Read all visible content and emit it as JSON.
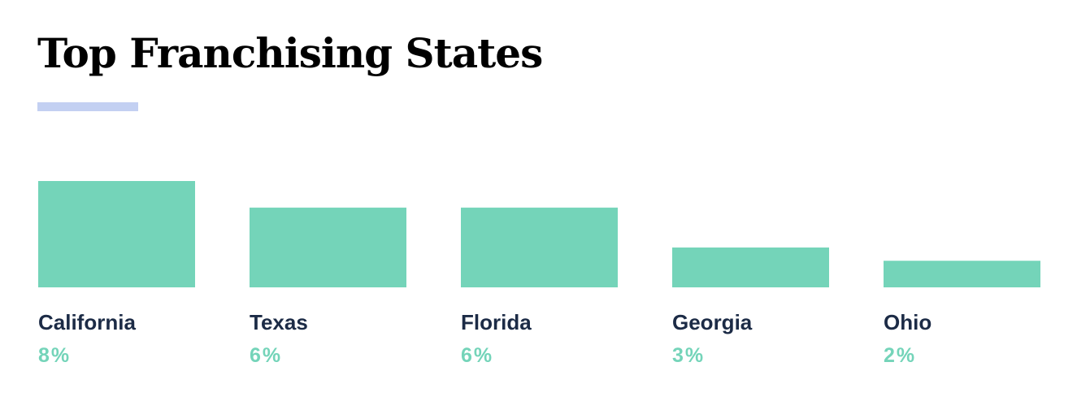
{
  "colors": {
    "bar": "#74d4b9",
    "accent_line": "#c3d0f2",
    "state_text": "#1c2b46",
    "value_text": "#74d4b9",
    "title_text": "#000000"
  },
  "chart_data": {
    "type": "bar",
    "title": "Top Franchising States",
    "categories": [
      "California",
      "Texas",
      "Florida",
      "Georgia",
      "Ohio"
    ],
    "values": [
      8,
      6,
      6,
      3,
      2
    ],
    "value_labels": [
      "8%",
      "6%",
      "6%",
      "3%",
      "2%"
    ],
    "unit": "%",
    "ylim": [
      0,
      8
    ],
    "xlabel": "",
    "ylabel": "",
    "grid": false,
    "axes_visible": false
  }
}
